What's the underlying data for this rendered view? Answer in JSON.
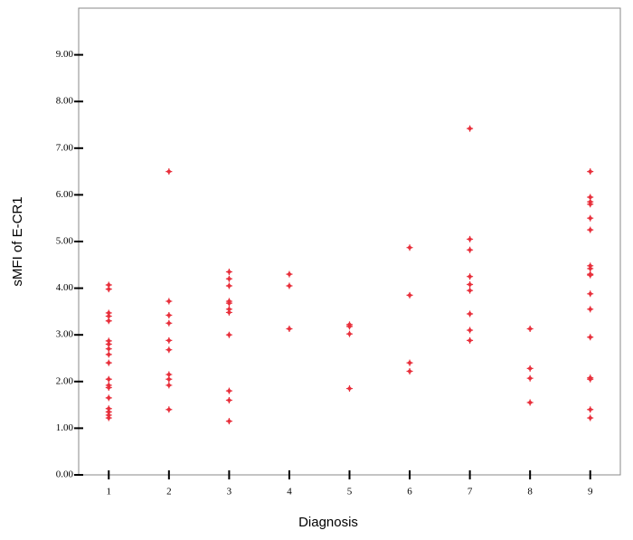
{
  "chart_data": {
    "type": "scatter",
    "x_label": "Diagnosis",
    "y_label": "sMFI of E-CR1",
    "x": [
      1,
      1,
      1,
      1,
      1,
      1,
      1,
      1,
      1,
      1,
      1,
      1,
      1,
      1,
      1,
      1,
      1,
      1,
      2,
      2,
      2,
      2,
      2,
      2,
      2,
      2,
      2,
      2,
      3,
      3,
      3,
      3,
      3,
      3,
      3,
      3,
      3,
      3,
      3,
      4,
      4,
      4,
      5,
      5,
      5,
      5,
      6,
      6,
      6,
      6,
      7,
      7,
      7,
      7,
      7,
      7,
      7,
      7,
      7,
      8,
      8,
      8,
      8,
      9,
      9,
      9,
      9,
      9,
      9,
      9,
      9,
      9,
      9,
      9,
      9,
      9,
      9,
      9,
      9,
      9
    ],
    "values": [
      4.07,
      3.98,
      3.47,
      3.4,
      3.3,
      2.87,
      2.8,
      2.7,
      2.58,
      2.4,
      2.05,
      1.92,
      1.87,
      1.65,
      1.42,
      1.35,
      1.28,
      1.22,
      6.5,
      3.72,
      3.42,
      3.25,
      2.88,
      2.68,
      2.15,
      2.05,
      1.92,
      1.4,
      4.35,
      4.2,
      4.05,
      3.72,
      3.68,
      3.55,
      3.48,
      3.0,
      1.8,
      1.6,
      1.15,
      4.3,
      4.05,
      3.13,
      3.22,
      3.18,
      3.02,
      1.85,
      4.87,
      3.85,
      2.4,
      2.22,
      7.42,
      5.05,
      4.82,
      4.25,
      4.08,
      3.95,
      3.45,
      3.1,
      2.88,
      3.13,
      2.28,
      2.07,
      1.55,
      6.5,
      5.95,
      5.85,
      5.8,
      5.5,
      5.25,
      4.48,
      4.42,
      4.3,
      4.28,
      3.88,
      3.55,
      2.95,
      2.08,
      2.05,
      1.4,
      1.22
    ],
    "color": "#e8303c",
    "xlim": [
      0.5,
      9.5
    ],
    "xticks": [
      1,
      2,
      3,
      4,
      5,
      6,
      7,
      8,
      9
    ],
    "ylim": [
      0,
      10
    ],
    "yticks": [
      {
        "value": 0,
        "label": "0.00"
      },
      {
        "value": 1,
        "label": "1.00"
      },
      {
        "value": 2,
        "label": "2.00"
      },
      {
        "value": 3,
        "label": "3.00"
      },
      {
        "value": 4,
        "label": "4.00"
      },
      {
        "value": 5,
        "label": "5.00"
      },
      {
        "value": 6,
        "label": "6.00"
      },
      {
        "value": 7,
        "label": "7.00"
      },
      {
        "value": 8,
        "label": "8.00"
      },
      {
        "value": 9,
        "label": "9.00"
      }
    ]
  }
}
